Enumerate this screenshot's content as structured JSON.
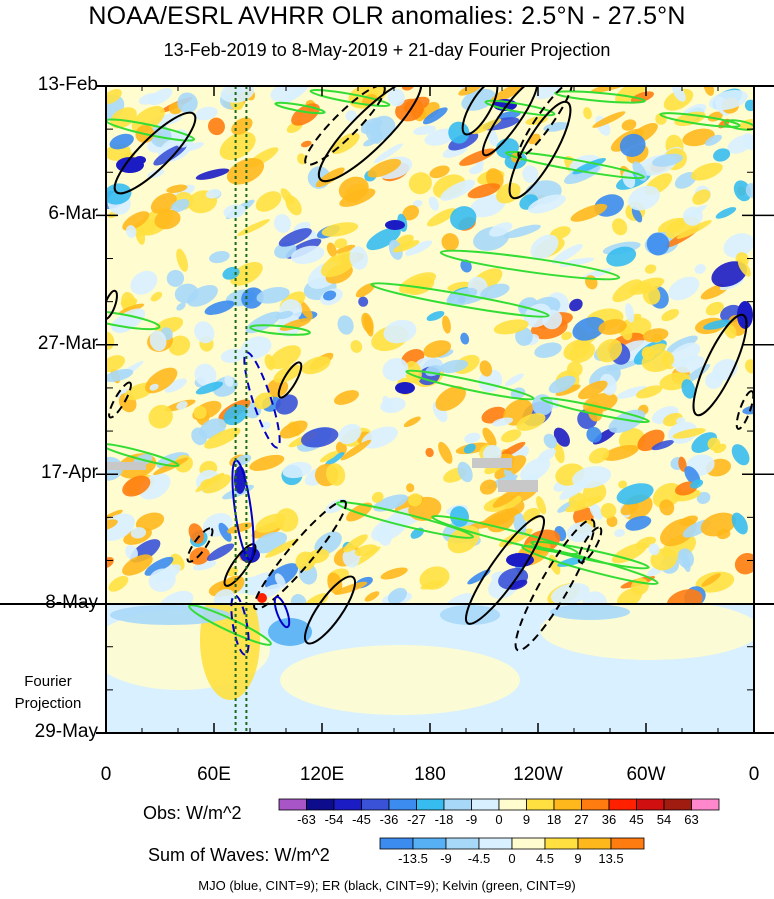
{
  "title": "NOAA/ESRL AVHRR OLR anomalies: 2.5°N - 27.5°N",
  "subtitle": "13-Feb-2019 to 8-May-2019 + 21-day Fourier Projection",
  "projection_label": [
    "Fourier",
    "Projection"
  ],
  "footer": "MJO (blue, CINT=9); ER (black, CINT=9); Kelvin (green, CINT=9)",
  "obs_colorbar": {
    "title": "Obs: W/m^2",
    "ticks": [
      "-63",
      "-54",
      "-45",
      "-36",
      "-27",
      "-18",
      "-9",
      "0",
      "9",
      "18",
      "27",
      "36",
      "45",
      "54",
      "63"
    ],
    "colors": [
      "#a855c8",
      "#0c0c8c",
      "#1c1cc4",
      "#3a52d8",
      "#3c8cf0",
      "#37bcf0",
      "#a8d8f8",
      "#d8f0ff",
      "#fffcd0",
      "#ffe040",
      "#ffb81c",
      "#ff7c10",
      "#ff2000",
      "#d01010",
      "#a01c10",
      "#ff88cc"
    ]
  },
  "wave_colorbar": {
    "title": "Sum of Waves: W/m^2",
    "ticks": [
      "-13.5",
      "-9",
      "-4.5",
      "0",
      "4.5",
      "9",
      "13.5"
    ],
    "colors": [
      "#3c8cf0",
      "#57b0f4",
      "#a8d8f8",
      "#d8f0ff",
      "#fffcd0",
      "#ffe040",
      "#ffb81c",
      "#ff7c10"
    ]
  },
  "chart_data": {
    "type": "heatmap",
    "title": "NOAA/ESRL AVHRR OLR anomalies: 2.5°N - 27.5°N",
    "subtitle": "13-Feb-2019 to 8-May-2019 + 21-day Fourier Projection",
    "x_axis": {
      "ticks": [
        "0",
        "60E",
        "120E",
        "180",
        "120W",
        "60W",
        "0"
      ],
      "tick_values_deg": [
        0,
        60,
        120,
        180,
        240,
        300,
        360
      ]
    },
    "y_axis": {
      "ticks": [
        "13-Feb",
        "6-Mar",
        "27-Mar",
        "17-Apr",
        "8-May",
        "29-May"
      ],
      "reversed": true
    },
    "observation_end": "8-May",
    "projection_end": "29-May",
    "reference_longitudes_deg": [
      72,
      78
    ],
    "series": [
      {
        "name": "MJO",
        "color": "#0000c8",
        "contour_interval": 9
      },
      {
        "name": "ER",
        "color": "#000000",
        "contour_interval": 9
      },
      {
        "name": "Kelvin",
        "color": "#33dd33",
        "contour_interval": 9
      }
    ]
  }
}
